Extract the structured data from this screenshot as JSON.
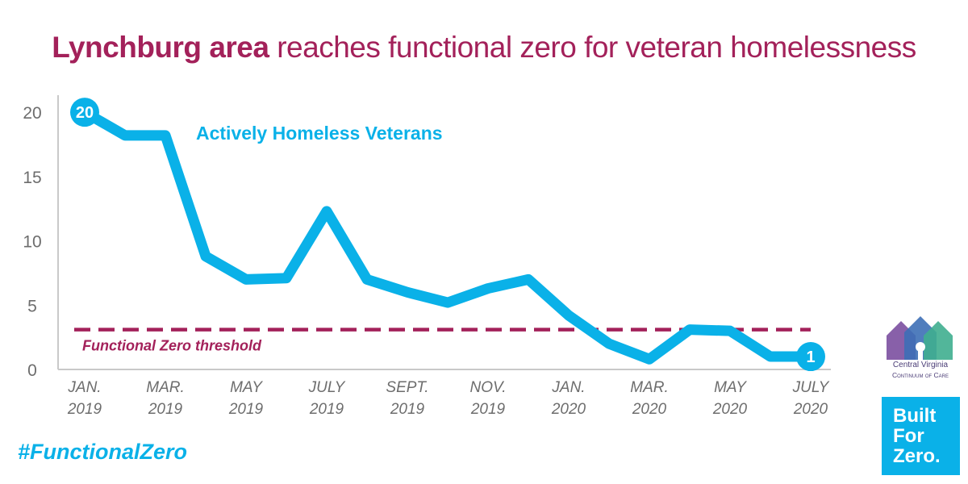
{
  "title": {
    "bold": "Lynchburg area",
    "rest": "reaches functional zero for veteran homelessness",
    "color": "#a3215a"
  },
  "chart_data": {
    "type": "line",
    "series": [
      {
        "name": "Actively Homeless Veterans",
        "color": "#0ab1e8",
        "values": [
          20,
          18.2,
          18.2,
          8.8,
          7,
          7.1,
          12.3,
          7,
          6,
          5.2,
          6.3,
          7,
          4.2,
          2,
          0.8,
          3.1,
          3,
          1,
          1
        ]
      }
    ],
    "x": [
      0,
      1,
      2,
      3,
      4,
      5,
      6,
      7,
      8,
      9,
      10,
      11,
      12,
      13,
      14,
      15,
      16,
      17,
      18
    ],
    "x_tick_positions": [
      0,
      2,
      4,
      6,
      8,
      10,
      12,
      14,
      16,
      18
    ],
    "x_tick_labels": [
      [
        "JAN.",
        "2019"
      ],
      [
        "MAR.",
        "2019"
      ],
      [
        "MAY",
        "2019"
      ],
      [
        "JULY",
        "2019"
      ],
      [
        "SEPT.",
        "2019"
      ],
      [
        "NOV.",
        "2019"
      ],
      [
        "JAN.",
        "2020"
      ],
      [
        "MAR.",
        "2020"
      ],
      [
        "MAY",
        "2020"
      ],
      [
        "JULY",
        "2020"
      ]
    ],
    "y_ticks": [
      0,
      5,
      10,
      15,
      20
    ],
    "ylim": [
      0,
      20.7
    ],
    "xlim": [
      0,
      18
    ],
    "series_label": "Actively Homeless Veterans",
    "threshold": {
      "value": 3.1,
      "label": "Functional Zero threshold",
      "color": "#a3215a"
    },
    "data_labels": [
      {
        "index": 0,
        "text": "20"
      },
      {
        "index": 18,
        "text": "1"
      }
    ]
  },
  "hashtag": "#FunctionalZero",
  "logo_cvcoc": {
    "name": "Central Virginia",
    "subtitle": "Continuum of Care"
  },
  "logo_bfz": {
    "line1": "Built",
    "line2": "For",
    "line3": "Zero."
  }
}
